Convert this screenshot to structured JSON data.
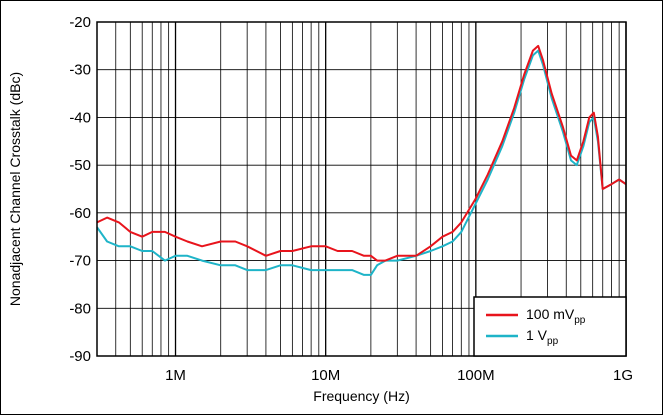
{
  "chart_data": {
    "type": "line",
    "xlabel": "Frequency (Hz)",
    "ylabel": "Nonadjacent Channel Crosstalk (dBc)",
    "x_scale": "log",
    "xlim": [
      300000,
      1000000000
    ],
    "ylim": [
      -90,
      -20
    ],
    "grid": true,
    "legend_position": "bottom-right",
    "x_ticks": [
      {
        "value": 1000000,
        "label": "1M"
      },
      {
        "value": 10000000,
        "label": "10M"
      },
      {
        "value": 100000000,
        "label": "100M"
      },
      {
        "value": 1000000000,
        "label": "1G"
      }
    ],
    "y_ticks": [
      {
        "value": -20,
        "label": "-20"
      },
      {
        "value": -30,
        "label": "-30"
      },
      {
        "value": -40,
        "label": "-40"
      },
      {
        "value": -50,
        "label": "-50"
      },
      {
        "value": -60,
        "label": "-60"
      },
      {
        "value": -70,
        "label": "-70"
      },
      {
        "value": -80,
        "label": "-80"
      },
      {
        "value": -90,
        "label": "-90"
      }
    ],
    "series": [
      {
        "name_main": "100 mV",
        "name_sub": "pp",
        "color": "#e8141c",
        "x": [
          300000,
          350000,
          420000,
          500000,
          600000,
          700000,
          850000,
          1000000,
          1200000,
          1500000,
          2000000,
          2500000,
          3000000,
          4000000,
          5000000,
          6000000,
          8000000,
          10000000,
          12000000,
          15000000,
          18000000,
          20000000,
          22000000,
          25000000,
          30000000,
          40000000,
          50000000,
          60000000,
          70000000,
          80000000,
          100000000,
          120000000,
          150000000,
          180000000,
          210000000,
          240000000,
          260000000,
          280000000,
          320000000,
          380000000,
          430000000,
          470000000,
          520000000,
          570000000,
          610000000,
          650000000,
          700000000,
          800000000,
          900000000,
          1000000000
        ],
        "y": [
          -62,
          -61,
          -62,
          -64,
          -65,
          -64,
          -64,
          -65,
          -66,
          -67,
          -66,
          -66,
          -67,
          -69,
          -68,
          -68,
          -67,
          -67,
          -68,
          -68,
          -69,
          -69,
          -70,
          -70,
          -69,
          -69,
          -67,
          -65,
          -64,
          -62,
          -57,
          -52,
          -45,
          -38,
          -31,
          -26,
          -25,
          -28,
          -35,
          -42,
          -48,
          -49,
          -45,
          -40,
          -39,
          -44,
          -55,
          -54,
          -53,
          -54
        ]
      },
      {
        "name_main": "1 V",
        "name_sub": "pp",
        "color": "#1eb4c8",
        "x": [
          300000,
          350000,
          420000,
          500000,
          600000,
          700000,
          850000,
          1000000,
          1200000,
          1500000,
          2000000,
          2500000,
          3000000,
          4000000,
          5000000,
          6000000,
          8000000,
          10000000,
          12000000,
          15000000,
          18000000,
          20000000,
          22000000,
          25000000,
          30000000,
          40000000,
          50000000,
          60000000,
          70000000,
          80000000,
          100000000,
          120000000,
          150000000,
          180000000,
          210000000,
          240000000,
          260000000,
          280000000,
          320000000,
          380000000,
          430000000,
          470000000,
          520000000,
          570000000,
          610000000,
          650000000,
          700000000,
          800000000,
          900000000,
          1000000000
        ],
        "y": [
          -63,
          -66,
          -67,
          -67,
          -68,
          -68,
          -70,
          -69,
          -69,
          -70,
          -71,
          -71,
          -72,
          -72,
          -71,
          -71,
          -72,
          -72,
          -72,
          -72,
          -73,
          -73,
          -71,
          -70,
          -70,
          -69,
          -68,
          -67,
          -66,
          -64,
          -58,
          -53,
          -46,
          -39,
          -32,
          -27,
          -26,
          -29,
          -36,
          -43,
          -49,
          -50,
          -46,
          -41,
          -40,
          -45,
          -55,
          -54,
          -53,
          -54
        ]
      }
    ]
  }
}
